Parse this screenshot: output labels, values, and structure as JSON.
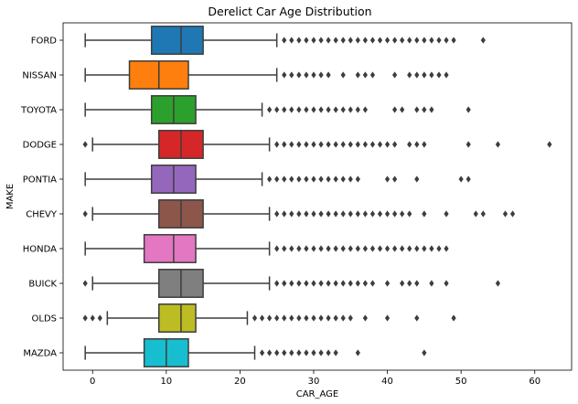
{
  "chart_data": {
    "type": "boxplot",
    "orientation": "horizontal",
    "title": "Derelict Car Age Distribution",
    "xlabel": "CAR_AGE",
    "ylabel": "MAKE",
    "xlim": [
      -4,
      65
    ],
    "xticks": [
      0,
      10,
      20,
      30,
      40,
      50,
      60
    ],
    "grid": false,
    "series": [
      {
        "name": "FORD",
        "color": "#1f77b4",
        "whisker_low": -1,
        "q1": 8,
        "median": 12,
        "q3": 15,
        "whisker_high": 25,
        "outliers": [
          26,
          27,
          28,
          29,
          30,
          31,
          32,
          33,
          34,
          35,
          36,
          37,
          38,
          39,
          40,
          41,
          42,
          43,
          44,
          45,
          46,
          47,
          48,
          49,
          53
        ]
      },
      {
        "name": "NISSAN",
        "color": "#ff7f0e",
        "whisker_low": -1,
        "q1": 5,
        "median": 9,
        "q3": 13,
        "whisker_high": 25,
        "outliers": [
          26,
          27,
          28,
          29,
          30,
          31,
          32,
          34,
          36,
          37,
          38,
          41,
          43,
          44,
          45,
          46,
          47,
          48
        ]
      },
      {
        "name": "TOYOTA",
        "color": "#2ca02c",
        "whisker_low": -1,
        "q1": 8,
        "median": 11,
        "q3": 14,
        "whisker_high": 23,
        "outliers": [
          24,
          25,
          26,
          27,
          28,
          29,
          30,
          31,
          32,
          33,
          34,
          35,
          36,
          37,
          41,
          42,
          44,
          45,
          46,
          51
        ]
      },
      {
        "name": "DODGE",
        "color": "#d62728",
        "whisker_low": 0,
        "q1": 9,
        "median": 12,
        "q3": 15,
        "whisker_high": 24,
        "outliers": [
          -1,
          25,
          26,
          27,
          28,
          29,
          30,
          31,
          32,
          33,
          34,
          35,
          36,
          37,
          38,
          39,
          40,
          41,
          43,
          44,
          45,
          51,
          55,
          62
        ]
      },
      {
        "name": "PONTIA",
        "color": "#9467bd",
        "whisker_low": -1,
        "q1": 8,
        "median": 11,
        "q3": 14,
        "whisker_high": 23,
        "outliers": [
          24,
          25,
          26,
          27,
          28,
          29,
          30,
          31,
          32,
          33,
          34,
          35,
          36,
          40,
          41,
          44,
          50,
          51
        ]
      },
      {
        "name": "CHEVY",
        "color": "#8c564b",
        "whisker_low": 0,
        "q1": 9,
        "median": 12,
        "q3": 15,
        "whisker_high": 24,
        "outliers": [
          -1,
          25,
          26,
          27,
          28,
          29,
          30,
          31,
          32,
          33,
          34,
          35,
          36,
          37,
          38,
          39,
          40,
          41,
          42,
          43,
          45,
          48,
          52,
          53,
          56,
          57
        ]
      },
      {
        "name": "HONDA",
        "color": "#e377c2",
        "whisker_low": -1,
        "q1": 7,
        "median": 11,
        "q3": 14,
        "whisker_high": 24,
        "outliers": [
          25,
          26,
          27,
          28,
          29,
          30,
          31,
          32,
          33,
          34,
          35,
          36,
          37,
          38,
          39,
          40,
          41,
          42,
          43,
          44,
          45,
          46,
          47,
          48
        ]
      },
      {
        "name": "BUICK",
        "color": "#7f7f7f",
        "whisker_low": 0,
        "q1": 9,
        "median": 12,
        "q3": 15,
        "whisker_high": 24,
        "outliers": [
          -1,
          25,
          26,
          27,
          28,
          29,
          30,
          31,
          32,
          33,
          34,
          35,
          36,
          37,
          38,
          40,
          42,
          43,
          44,
          46,
          48,
          55
        ]
      },
      {
        "name": "OLDS",
        "color": "#bcbd22",
        "whisker_low": 2,
        "q1": 9,
        "median": 12,
        "q3": 14,
        "whisker_high": 21,
        "outliers": [
          -1,
          0,
          1,
          22,
          23,
          24,
          25,
          26,
          27,
          28,
          29,
          30,
          31,
          32,
          33,
          34,
          35,
          37,
          40,
          44,
          49
        ]
      },
      {
        "name": "MAZDA",
        "color": "#17becf",
        "whisker_low": -1,
        "q1": 7,
        "median": 10,
        "q3": 13,
        "whisker_high": 22,
        "outliers": [
          23,
          24,
          25,
          26,
          27,
          28,
          29,
          30,
          31,
          32,
          33,
          36,
          45
        ]
      }
    ]
  }
}
